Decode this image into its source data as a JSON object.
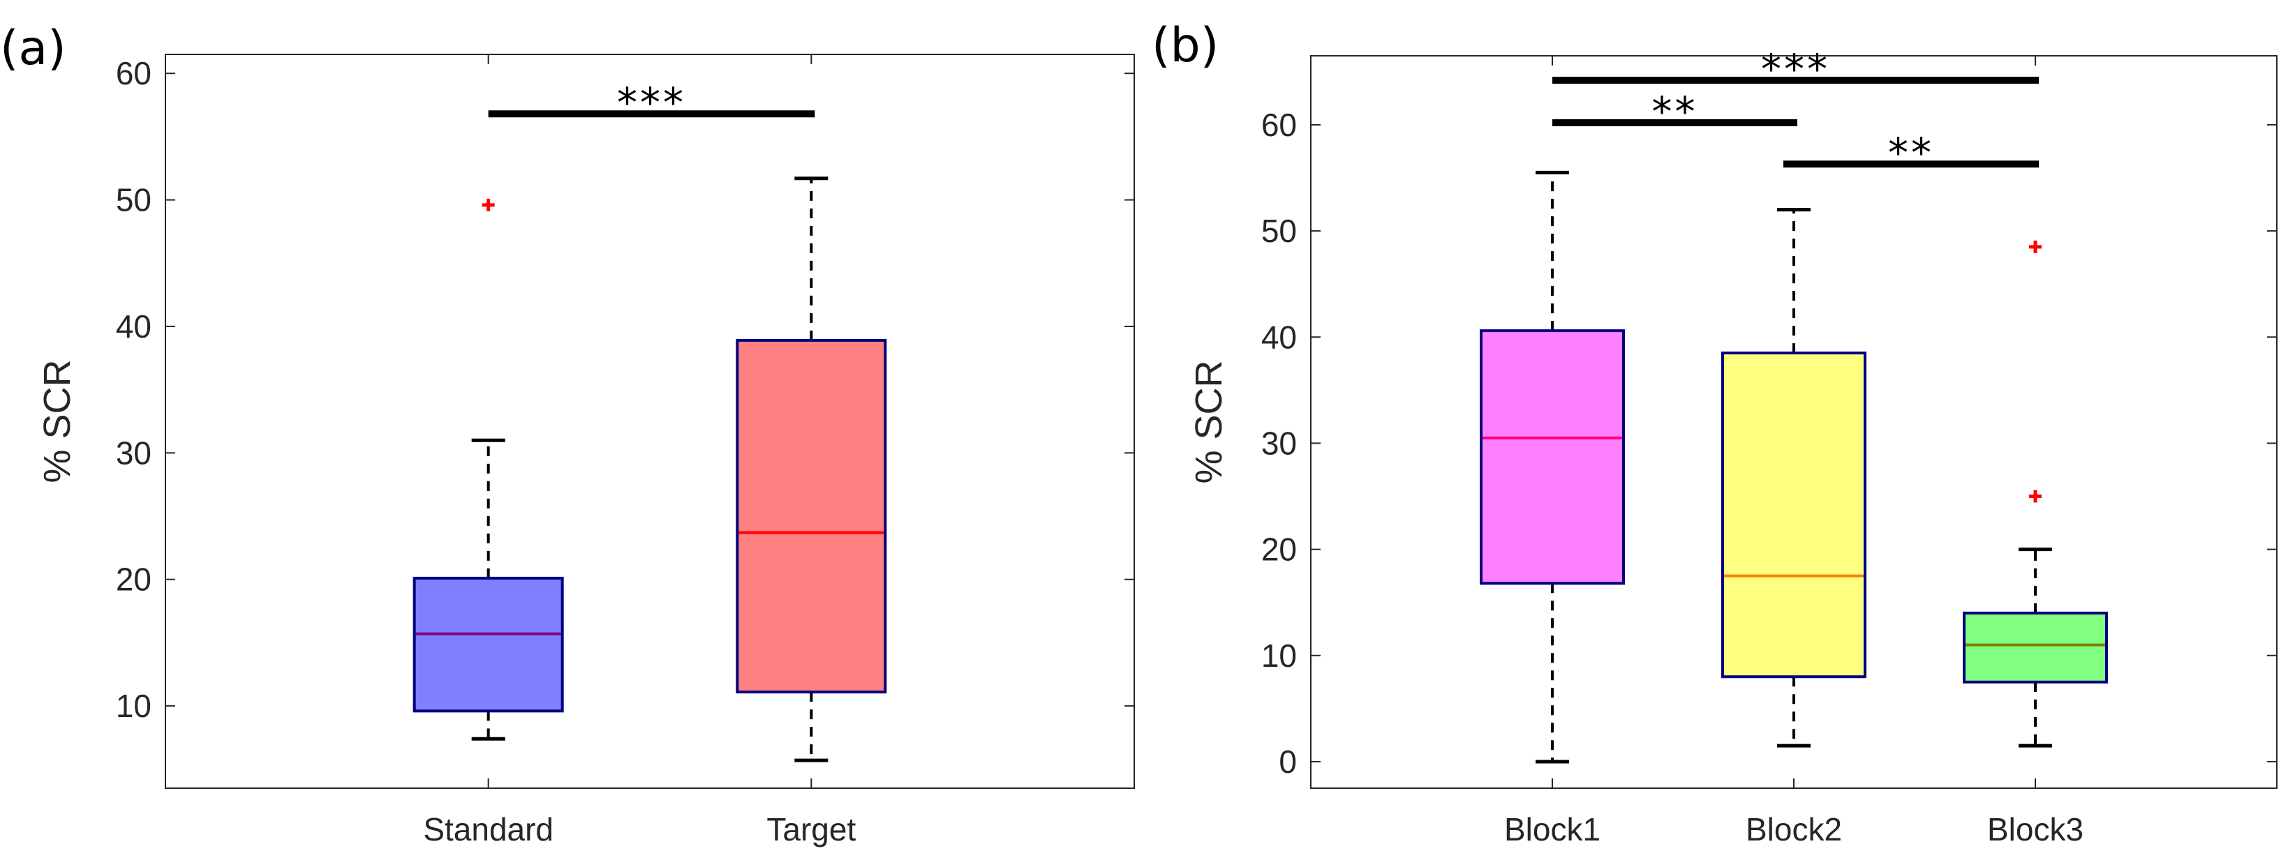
{
  "chart_data": [
    {
      "panel_label": "(a)",
      "type": "box",
      "ylabel": "% SCR",
      "ylim": [
        3.5,
        61.5
      ],
      "yticks": [
        10,
        20,
        30,
        40,
        50,
        60
      ],
      "categories": [
        "Standard",
        "Target"
      ],
      "boxes": [
        {
          "name": "Standard",
          "whisker_low": 7.4,
          "q1": 9.6,
          "median": 15.7,
          "q3": 20.1,
          "whisker_high": 31.0,
          "outliers": [
            49.6
          ],
          "fill": "#8080ff",
          "median_color": "#800080"
        },
        {
          "name": "Target",
          "whisker_low": 5.7,
          "q1": 11.1,
          "median": 23.7,
          "q3": 38.9,
          "whisker_high": 51.7,
          "outliers": [],
          "fill": "#ff8080",
          "median_color": "#ff0000"
        }
      ],
      "significance": [
        {
          "from": 0,
          "to": 1,
          "y": 56.8,
          "label": "***"
        }
      ]
    },
    {
      "panel_label": "(b)",
      "type": "box",
      "ylabel": "% SCR",
      "ylim": [
        -2.5,
        66.5
      ],
      "yticks": [
        0,
        10,
        20,
        30,
        40,
        50,
        60
      ],
      "categories": [
        "Block1",
        "Block2",
        "Block3"
      ],
      "boxes": [
        {
          "name": "Block1",
          "whisker_low": 0.0,
          "q1": 16.8,
          "median": 30.5,
          "q3": 40.6,
          "whisker_high": 55.5,
          "outliers": [],
          "fill": "#ff80ff",
          "median_color": "#ff0080"
        },
        {
          "name": "Block2",
          "whisker_low": 1.5,
          "q1": 8.0,
          "median": 17.5,
          "q3": 38.5,
          "whisker_high": 52.0,
          "outliers": [],
          "fill": "#ffff80",
          "median_color": "#ff8000"
        },
        {
          "name": "Block3",
          "whisker_low": 1.5,
          "q1": 7.5,
          "median": 11.0,
          "q3": 14.0,
          "whisker_high": 20.0,
          "outliers": [
            25.0,
            48.5
          ],
          "fill": "#80ff80",
          "median_color": "#808000"
        }
      ],
      "significance": [
        {
          "from": 0,
          "to": 2,
          "y": 64.2,
          "label": "***"
        },
        {
          "from": 0,
          "to": 1,
          "y": 60.2,
          "label": "**"
        },
        {
          "from": 1,
          "to": 2,
          "y": 56.3,
          "label": "**"
        }
      ]
    }
  ]
}
